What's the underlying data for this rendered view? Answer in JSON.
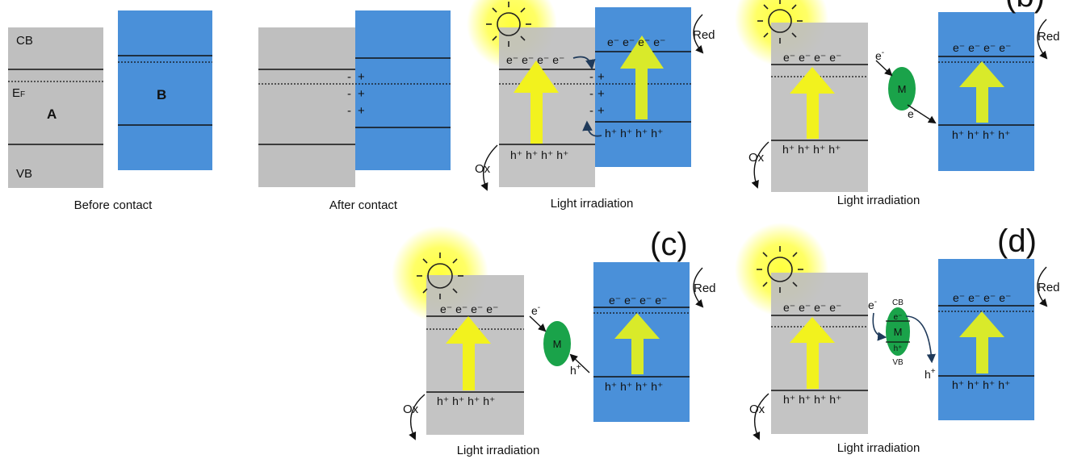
{
  "colors": {
    "semiconductor_a": "#bfbfbf",
    "semiconductor_b": "#4a90d9",
    "light_arrow": "#f2f21e",
    "mediator": "#1aa34a",
    "sun_glow": "#ffff33",
    "band_line": "#111111",
    "transfer_arrow": "#1f3a5a"
  },
  "icons": [
    "sun-icon",
    "light-arrow-icon",
    "mediator-ellipse-icon"
  ],
  "panel_letters": {
    "b": "(b)",
    "c": "(c)",
    "d": "(d)"
  },
  "labels": {
    "cb": "CB",
    "ef": "E",
    "ef_sub": "F",
    "vb": "VB",
    "a": "A",
    "b": "B",
    "red": "Red",
    "ox": "Ox",
    "mediator": "M",
    "electron": "e",
    "hole": "h",
    "electron_sup": "-",
    "hole_sup": "+",
    "minus": "-",
    "plus": "+"
  },
  "carriers": {
    "electrons": "e⁻ e⁻ e⁻ e⁻",
    "holes": "h⁺ h⁺ h⁺ h⁺",
    "mediator_electron": "e⁻",
    "mediator_hole": "h⁺"
  },
  "captions": {
    "before": "Before contact",
    "after": "After contact",
    "light_1": "Light irradiation",
    "light_2": "Light irradiation",
    "light_3": "Light irradiation",
    "light_4": "Light irradiation"
  }
}
